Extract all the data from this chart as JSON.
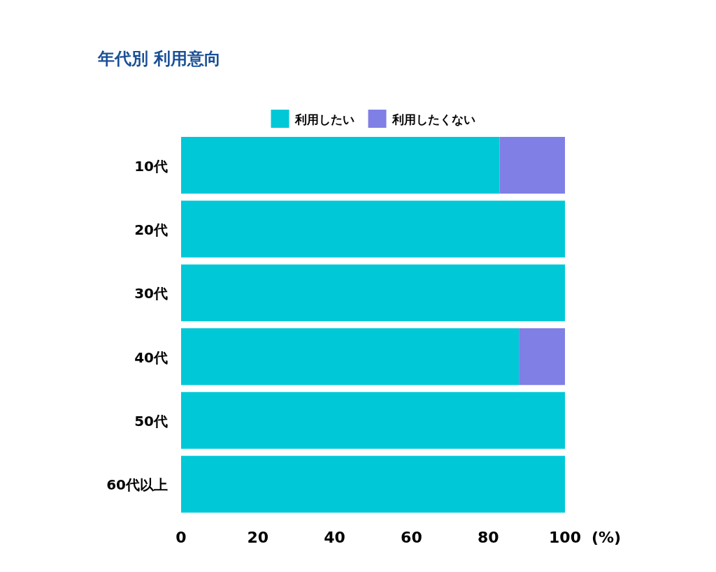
{
  "chart_data": {
    "type": "bar",
    "orientation": "horizontal",
    "stacked": true,
    "title": "年代別 利用意向",
    "xlabel": "(%)",
    "legend": "top",
    "categories": [
      "10代",
      "20代",
      "30代",
      "40代",
      "50代",
      "60代以上"
    ],
    "series": [
      {
        "name": "利用したい",
        "color": "#00c8d7",
        "values": [
          83,
          100,
          100,
          88,
          100,
          100
        ]
      },
      {
        "name": "利用したくない",
        "color": "#7f7fe6",
        "values": [
          17,
          0,
          0,
          12,
          0,
          0
        ]
      }
    ],
    "xlim": [
      0,
      100
    ],
    "xticks": [
      0,
      20,
      40,
      60,
      80,
      100
    ]
  }
}
